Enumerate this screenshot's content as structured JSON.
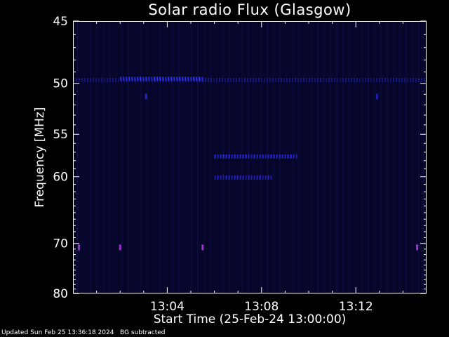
{
  "chart_data": {
    "type": "heatmap",
    "title": "Solar radio Flux (Glasgow)",
    "xlabel": "Start Time (25-Feb-24 13:00:00)",
    "ylabel": "Frequency [MHz]",
    "x_range_minutes": [
      0,
      15
    ],
    "ylim": [
      45,
      80
    ],
    "x_ticks": [
      {
        "minute": 4,
        "label": "13:04"
      },
      {
        "minute": 8,
        "label": "13:08"
      },
      {
        "minute": 12,
        "label": "13:12"
      }
    ],
    "y_ticks": [
      {
        "value": 45,
        "label": "45"
      },
      {
        "value": 50,
        "label": "50"
      },
      {
        "value": 55,
        "label": "55"
      },
      {
        "value": 60,
        "label": "60"
      },
      {
        "value": 70,
        "label": "70"
      },
      {
        "value": 80,
        "label": "80"
      }
    ],
    "background_color": "#06062a",
    "signal_color": "#3030ff",
    "marker_color": "#a030d0",
    "features": [
      {
        "kind": "band",
        "freq": 49.7,
        "start_min": 0.0,
        "end_min": 15.0,
        "intensity": 0.45
      },
      {
        "kind": "band",
        "freq": 49.6,
        "start_min": 2.0,
        "end_min": 5.5,
        "intensity": 1.0
      },
      {
        "kind": "band",
        "freq": 57.5,
        "start_min": 6.0,
        "end_min": 9.5,
        "intensity": 0.9
      },
      {
        "kind": "band",
        "freq": 60.1,
        "start_min": 6.0,
        "end_min": 8.5,
        "intensity": 0.8
      },
      {
        "kind": "spot",
        "freq": 51.2,
        "minute": 3.1,
        "intensity": 0.7
      },
      {
        "kind": "spot",
        "freq": 51.2,
        "minute": 12.9,
        "intensity": 0.6
      },
      {
        "kind": "spot",
        "freq": 70.7,
        "minute": 0.25,
        "intensity": 1.0
      },
      {
        "kind": "spot",
        "freq": 70.7,
        "minute": 2.0,
        "intensity": 1.0
      },
      {
        "kind": "spot",
        "freq": 70.7,
        "minute": 5.5,
        "intensity": 1.0
      },
      {
        "kind": "spot",
        "freq": 70.7,
        "minute": 14.6,
        "intensity": 1.0
      }
    ]
  },
  "footer": {
    "updated": "Updated Sun Feb 25 13:36:18 2024",
    "note": "BG subtracted"
  }
}
